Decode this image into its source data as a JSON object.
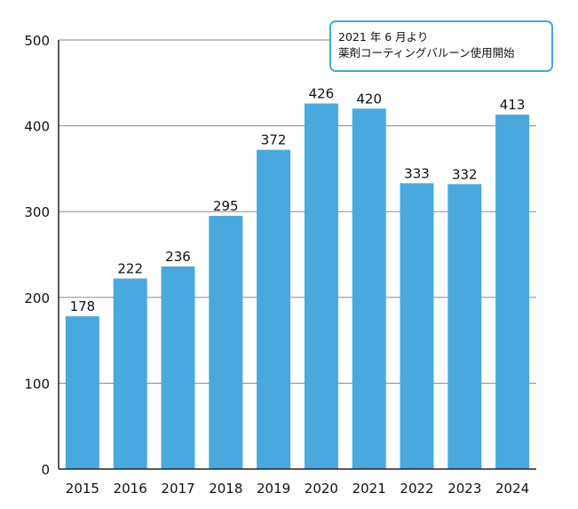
{
  "chart_data": {
    "type": "bar",
    "categories": [
      "2015",
      "2016",
      "2017",
      "2018",
      "2019",
      "2020",
      "2021",
      "2022",
      "2023",
      "2024"
    ],
    "values": [
      178,
      222,
      236,
      295,
      372,
      426,
      420,
      333,
      332,
      413
    ],
    "title": "",
    "xlabel": "",
    "ylabel": "",
    "ylim": [
      0,
      500
    ],
    "yticks": [
      0,
      100,
      200,
      300,
      400,
      500
    ],
    "grid": true,
    "data_labels": true,
    "bar_color": "#4aa8de",
    "annotation": {
      "line1": "2021 年 6 月より",
      "line2": "薬剤コーティングバルーン使用開始"
    }
  }
}
